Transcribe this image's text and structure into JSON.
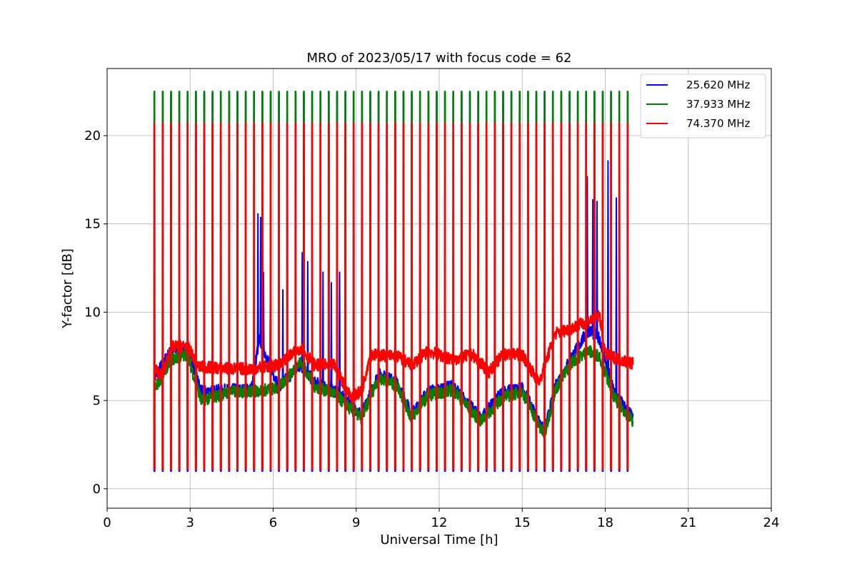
{
  "chart_data": {
    "type": "line",
    "title": "MRO of 2023/05/17 with focus code = 62",
    "xlabel": "Universal Time [h]",
    "ylabel": "Y-factor [dB]",
    "xlim": [
      0,
      24
    ],
    "ylim": [
      -1.1,
      23.8
    ],
    "xticks": [
      0,
      3,
      6,
      9,
      12,
      15,
      18,
      21,
      24
    ],
    "yticks": [
      0,
      5,
      10,
      15,
      20
    ],
    "grid": true,
    "legend_position": "top-right",
    "cycle_period_h": 0.3,
    "series": [
      {
        "name": "25.620 MHz",
        "color": "#0000ff",
        "peak": 22.4,
        "dip": 1.0,
        "baseline": [
          [
            1.7,
            6.3
          ],
          [
            2.3,
            7.8
          ],
          [
            2.9,
            8.0
          ],
          [
            3.4,
            5.5
          ],
          [
            4.5,
            5.6
          ],
          [
            5.2,
            5.6
          ],
          [
            5.5,
            8.5
          ],
          [
            6.2,
            5.8
          ],
          [
            7.0,
            7.0
          ],
          [
            7.5,
            6.0
          ],
          [
            8.2,
            5.6
          ],
          [
            8.8,
            4.8
          ],
          [
            9.2,
            4.2
          ],
          [
            9.8,
            6.5
          ],
          [
            10.5,
            6.0
          ],
          [
            11.0,
            4.2
          ],
          [
            11.6,
            5.5
          ],
          [
            12.5,
            5.8
          ],
          [
            13.5,
            4.0
          ],
          [
            14.3,
            5.5
          ],
          [
            15.0,
            5.7
          ],
          [
            15.8,
            3.2
          ],
          [
            16.2,
            5.8
          ],
          [
            16.8,
            7.5
          ],
          [
            17.4,
            9.0
          ],
          [
            17.8,
            8.5
          ],
          [
            18.3,
            5.5
          ],
          [
            19.0,
            4.0
          ]
        ],
        "spikes": [
          [
            5.45,
            15.6
          ],
          [
            5.55,
            15.4
          ],
          [
            5.65,
            12.3
          ],
          [
            5.9,
            11.5
          ],
          [
            6.35,
            11.3
          ],
          [
            7.1,
            15.1
          ],
          [
            7.05,
            13.4
          ],
          [
            7.25,
            12.9
          ],
          [
            7.8,
            12.3
          ],
          [
            8.1,
            11.7
          ],
          [
            8.4,
            12.3
          ],
          [
            17.35,
            17.7
          ],
          [
            17.55,
            16.4
          ],
          [
            17.7,
            16.3
          ],
          [
            18.1,
            18.6
          ],
          [
            18.4,
            16.5
          ]
        ]
      },
      {
        "name": "37.933 MHz",
        "color": "#008000",
        "peak": 22.5,
        "dip": 1.1,
        "baseline": [
          [
            1.7,
            5.6
          ],
          [
            2.3,
            7.3
          ],
          [
            2.9,
            7.6
          ],
          [
            3.4,
            5.0
          ],
          [
            4.5,
            5.5
          ],
          [
            5.2,
            5.5
          ],
          [
            6.2,
            5.7
          ],
          [
            7.0,
            7.2
          ],
          [
            7.5,
            5.8
          ],
          [
            8.2,
            5.4
          ],
          [
            8.8,
            4.5
          ],
          [
            9.2,
            4.0
          ],
          [
            9.8,
            6.3
          ],
          [
            10.5,
            5.8
          ],
          [
            11.0,
            4.0
          ],
          [
            11.6,
            5.3
          ],
          [
            12.5,
            5.6
          ],
          [
            13.5,
            3.8
          ],
          [
            14.3,
            5.2
          ],
          [
            15.0,
            5.5
          ],
          [
            15.8,
            3.0
          ],
          [
            16.2,
            5.6
          ],
          [
            16.8,
            7.2
          ],
          [
            17.4,
            7.8
          ],
          [
            17.8,
            7.5
          ],
          [
            18.3,
            5.2
          ],
          [
            19.0,
            3.8
          ]
        ],
        "spikes": []
      },
      {
        "name": "74.370 MHz",
        "color": "#ff0000",
        "peak": 20.7,
        "dip": 1.1,
        "baseline": [
          [
            1.7,
            6.8
          ],
          [
            2.0,
            6.4
          ],
          [
            2.3,
            8.0
          ],
          [
            2.9,
            8.1
          ],
          [
            3.3,
            6.9
          ],
          [
            4.5,
            6.8
          ],
          [
            5.2,
            6.8
          ],
          [
            6.2,
            7.0
          ],
          [
            7.0,
            8.0
          ],
          [
            7.5,
            7.0
          ],
          [
            8.2,
            7.0
          ],
          [
            8.8,
            5.2
          ],
          [
            9.2,
            5.5
          ],
          [
            9.5,
            7.6
          ],
          [
            10.5,
            7.5
          ],
          [
            11.0,
            7.0
          ],
          [
            11.6,
            7.8
          ],
          [
            12.5,
            7.3
          ],
          [
            13.2,
            7.6
          ],
          [
            13.8,
            6.6
          ],
          [
            14.3,
            7.6
          ],
          [
            15.0,
            7.6
          ],
          [
            15.6,
            6.0
          ],
          [
            16.2,
            8.8
          ],
          [
            16.8,
            9.1
          ],
          [
            17.4,
            9.5
          ],
          [
            17.8,
            9.8
          ],
          [
            18.0,
            7.6
          ],
          [
            19.0,
            7.1
          ]
        ],
        "spikes": []
      }
    ]
  }
}
